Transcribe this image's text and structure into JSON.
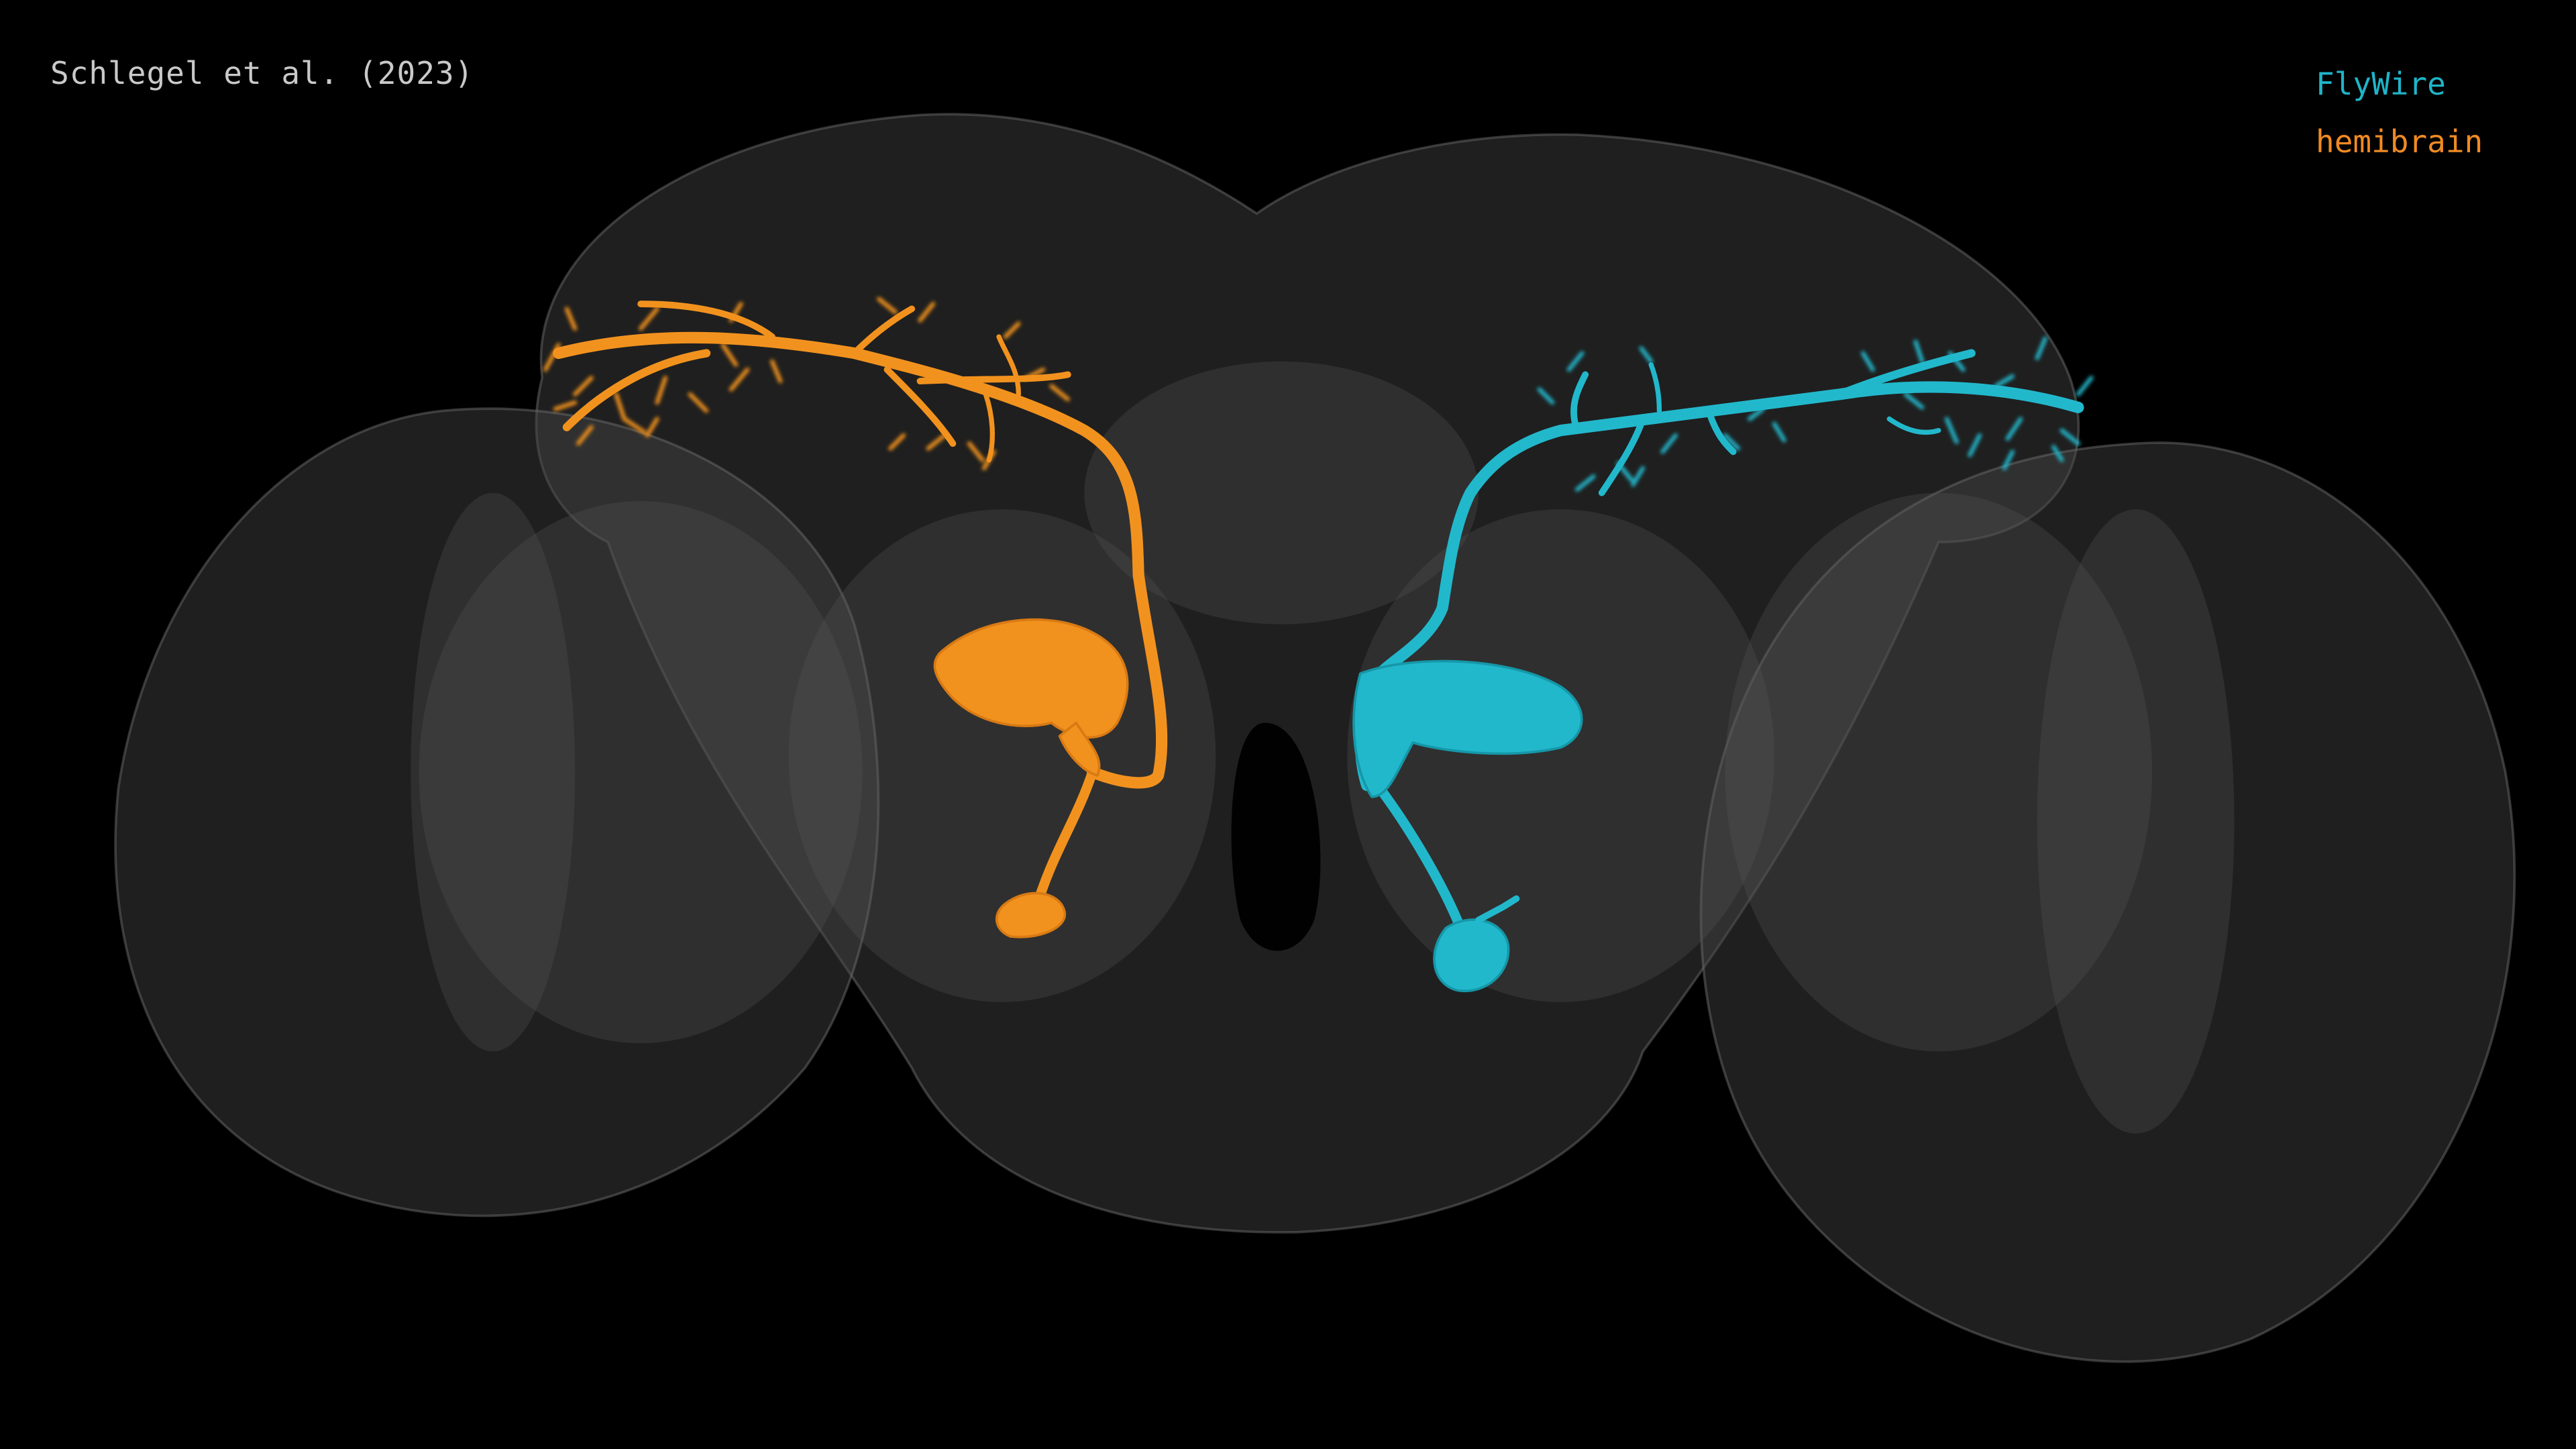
{
  "credit": "Schlegel et al. (2023)",
  "legend": [
    {
      "label": "FlyWire",
      "color": "#1fb5c9"
    },
    {
      "label": "hemibrain",
      "color": "#f08a24"
    }
  ],
  "colors": {
    "background": "#000000",
    "brain_fill": "#2a2a2a",
    "brain_edge": "#5a5a5a",
    "flywire_neuron": "#22b8cc",
    "hemibrain_neuron": "#f2921e"
  }
}
